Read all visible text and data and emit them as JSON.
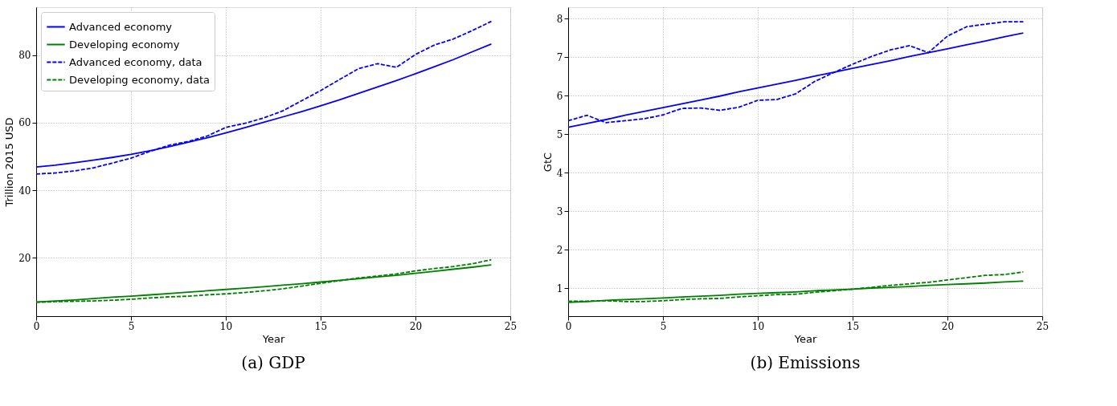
{
  "chart_data": [
    {
      "type": "line",
      "title": "(a) GDP",
      "xlabel": "Year",
      "ylabel": "Trillion 2015 USD",
      "xlim": [
        0,
        25
      ],
      "xticks": [
        0,
        5,
        10,
        15,
        20,
        25
      ],
      "ylim": [
        2.7,
        94.2
      ],
      "yticks": [
        20,
        40,
        60,
        80
      ],
      "grid": true,
      "legend": "top left",
      "x": [
        0,
        1,
        2,
        3,
        4,
        5,
        6,
        7,
        8,
        9,
        10,
        11,
        12,
        13,
        14,
        15,
        16,
        17,
        18,
        19,
        20,
        21,
        22,
        23,
        24
      ],
      "series": [
        {
          "name": "Advanced economy",
          "color": "#0000ff",
          "line_style": "solid",
          "values": [
            46.9,
            47.4,
            48.1,
            48.9,
            49.7,
            50.6,
            51.7,
            52.9,
            54.2,
            55.5,
            57.0,
            58.5,
            60.1,
            61.7,
            63.3,
            65.0,
            66.8,
            68.7,
            70.6,
            72.5,
            74.5,
            76.6,
            78.7,
            81.0,
            83.3
          ]
        },
        {
          "name": "Developing economy",
          "color": "#008000",
          "line_style": "solid",
          "values": [
            6.9,
            7.2,
            7.5,
            7.9,
            8.3,
            8.6,
            9.0,
            9.4,
            9.8,
            10.2,
            10.6,
            11.0,
            11.4,
            11.9,
            12.3,
            12.8,
            13.3,
            13.8,
            14.3,
            14.8,
            15.4,
            16.0,
            16.6,
            17.2,
            17.9
          ]
        },
        {
          "name": "Advanced economy, data",
          "color": "#0000ff",
          "line_style": "dashed",
          "values": [
            44.8,
            45.1,
            45.7,
            46.6,
            48.0,
            49.5,
            51.5,
            53.3,
            54.4,
            56.0,
            58.6,
            59.8,
            61.4,
            63.5,
            66.5,
            69.5,
            72.8,
            76.0,
            77.5,
            76.4,
            80.2,
            83.0,
            84.8,
            87.3,
            90.0
          ]
        },
        {
          "name": "Developing economy, data",
          "color": "#008000",
          "line_style": "dashed",
          "values": [
            6.8,
            7.0,
            7.1,
            7.2,
            7.4,
            7.7,
            8.1,
            8.4,
            8.6,
            9.0,
            9.3,
            9.7,
            10.2,
            10.8,
            11.6,
            12.4,
            13.2,
            14.0,
            14.6,
            15.2,
            16.1,
            16.8,
            17.4,
            18.2,
            19.4
          ]
        }
      ]
    },
    {
      "type": "line",
      "title": "(b) Emissions",
      "xlabel": "Year",
      "ylabel": "GtC",
      "xlim": [
        0,
        25
      ],
      "xticks": [
        0,
        5,
        10,
        15,
        20,
        25
      ],
      "ylim": [
        0.27,
        8.3
      ],
      "yticks": [
        1,
        2,
        3,
        4,
        5,
        6,
        7,
        8
      ],
      "grid": true,
      "legend": "top left",
      "x": [
        0,
        1,
        2,
        3,
        4,
        5,
        6,
        7,
        8,
        9,
        10,
        11,
        12,
        13,
        14,
        15,
        16,
        17,
        18,
        19,
        20,
        21,
        22,
        23,
        24
      ],
      "series": [
        {
          "name": "Advanced economy",
          "color": "#0000ff",
          "line_style": "solid",
          "values": [
            5.18,
            5.28,
            5.38,
            5.49,
            5.59,
            5.69,
            5.79,
            5.89,
            5.99,
            6.1,
            6.2,
            6.3,
            6.4,
            6.51,
            6.61,
            6.71,
            6.81,
            6.91,
            7.02,
            7.12,
            7.22,
            7.32,
            7.42,
            7.53,
            7.63
          ]
        },
        {
          "name": "Developing economy",
          "color": "#008000",
          "line_style": "solid",
          "values": [
            0.63,
            0.65,
            0.68,
            0.7,
            0.72,
            0.74,
            0.77,
            0.79,
            0.81,
            0.84,
            0.86,
            0.88,
            0.9,
            0.93,
            0.95,
            0.97,
            1.0,
            1.02,
            1.04,
            1.07,
            1.09,
            1.11,
            1.13,
            1.16,
            1.18
          ]
        },
        {
          "name": "Advanced economy, data",
          "color": "#0000ff",
          "line_style": "dashed",
          "values": [
            5.35,
            5.49,
            5.3,
            5.35,
            5.4,
            5.5,
            5.67,
            5.68,
            5.62,
            5.7,
            5.88,
            5.9,
            6.05,
            6.37,
            6.6,
            6.82,
            7.02,
            7.19,
            7.3,
            7.12,
            7.55,
            7.79,
            7.86,
            7.92,
            7.92
          ]
        },
        {
          "name": "Developing economy, data",
          "color": "#008000",
          "line_style": "dashed",
          "values": [
            0.66,
            0.66,
            0.67,
            0.65,
            0.65,
            0.67,
            0.7,
            0.72,
            0.73,
            0.77,
            0.8,
            0.83,
            0.84,
            0.89,
            0.93,
            0.97,
            1.02,
            1.07,
            1.11,
            1.15,
            1.21,
            1.27,
            1.33,
            1.35,
            1.42
          ]
        }
      ]
    }
  ]
}
